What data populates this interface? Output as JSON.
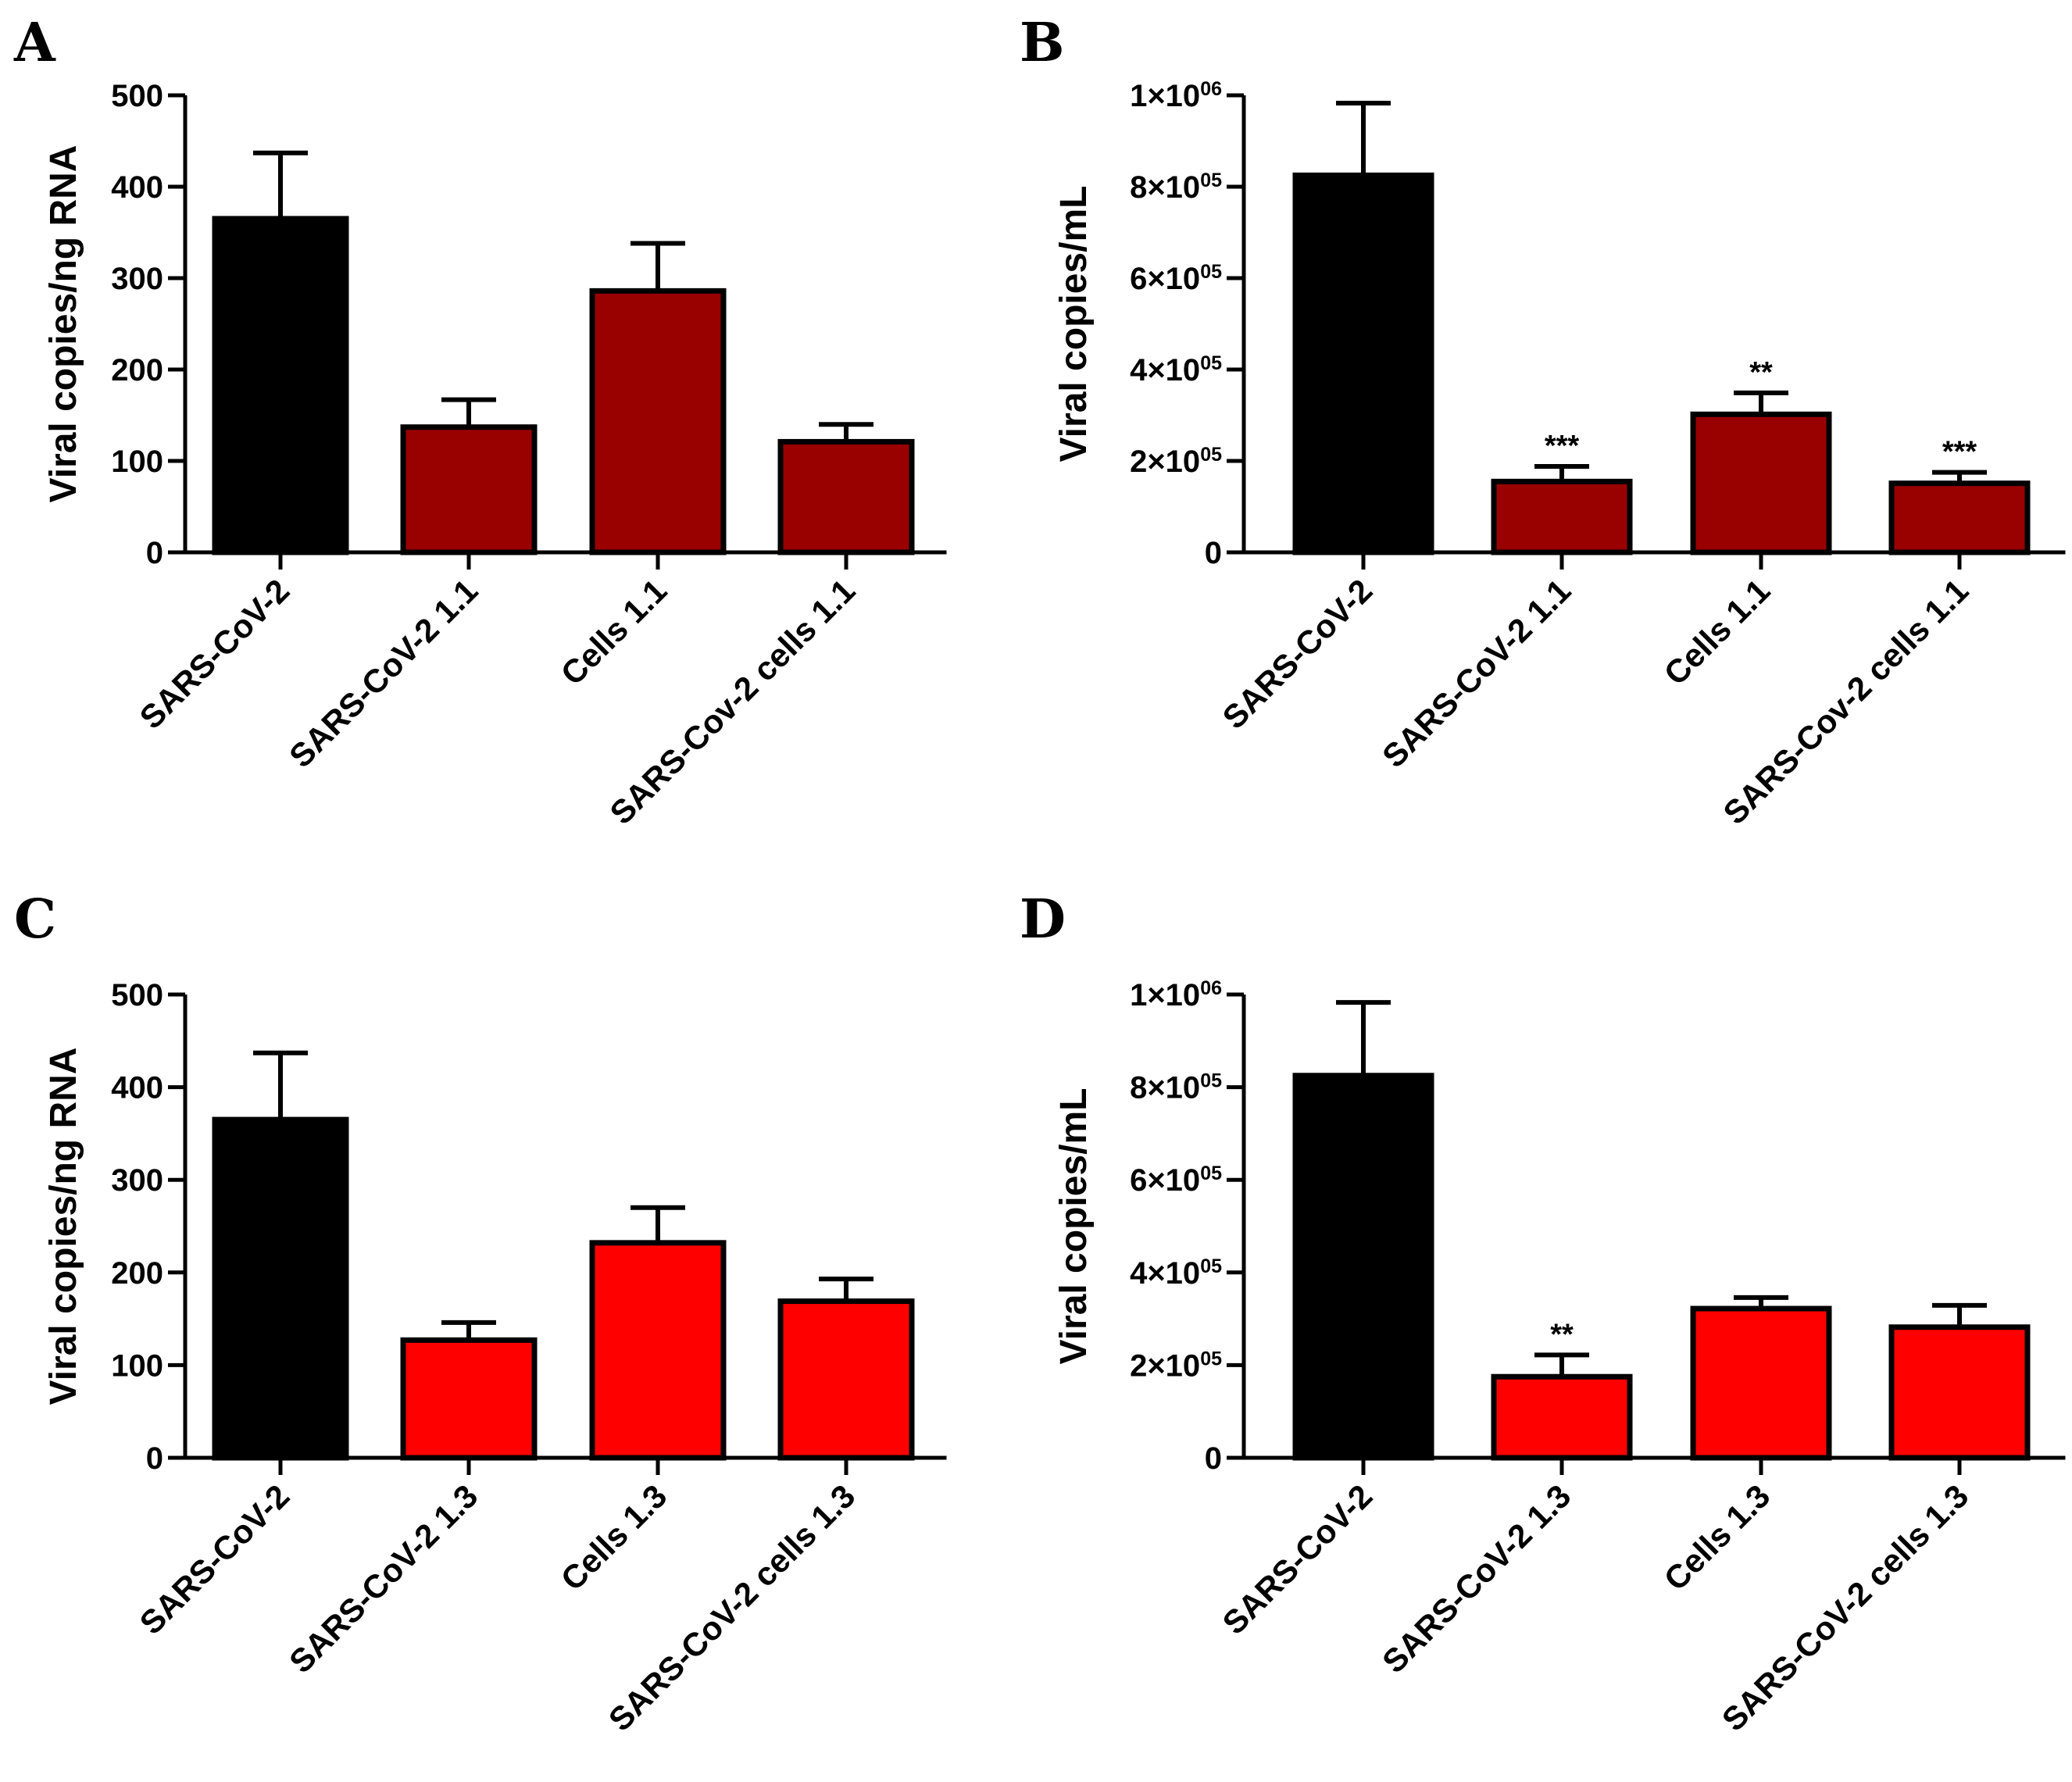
{
  "figure": {
    "colors": {
      "control": "#000000",
      "dark_red": "#990000",
      "red": "#ff0000"
    }
  },
  "chart_data": [
    {
      "panel": "A",
      "type": "bar",
      "ylabel": "Viral copies/ng RNA",
      "ylim": [
        0,
        500
      ],
      "yticks": [
        0,
        100,
        200,
        300,
        400,
        500
      ],
      "ytick_labels": [
        "0",
        "100",
        "200",
        "300",
        "400",
        "500"
      ],
      "categories": [
        "SARS-CoV-2",
        "SARS-CoV-2 1.1",
        "Cells 1.1",
        "SARS-Cov-2 cells 1.1"
      ],
      "values": [
        365,
        137,
        286,
        121
      ],
      "errors": [
        72,
        30,
        52,
        19
      ],
      "significance": [
        "",
        "",
        "",
        ""
      ],
      "bar_colors": [
        "#000000",
        "#990000",
        "#990000",
        "#990000"
      ]
    },
    {
      "panel": "B",
      "type": "bar",
      "ylabel": "Viral copies/mL",
      "ylim": [
        0,
        1000000
      ],
      "yticks": [
        0,
        200000,
        400000,
        600000,
        800000,
        1000000
      ],
      "ytick_labels": [
        {
          "base": "0",
          "sup": ""
        },
        {
          "base": "2×10",
          "sup": "05"
        },
        {
          "base": "4×10",
          "sup": "05"
        },
        {
          "base": "6×10",
          "sup": "05"
        },
        {
          "base": "8×10",
          "sup": "05"
        },
        {
          "base": "1×10",
          "sup": "06"
        }
      ],
      "categories": [
        "SARS-CoV-2",
        "SARS-CoV-2 1.1",
        "Cells 1.1",
        "SARS-Cov-2 cells 1.1"
      ],
      "values": [
        825000,
        155000,
        302000,
        151000
      ],
      "errors": [
        158000,
        33000,
        47000,
        24000
      ],
      "significance": [
        "",
        "***",
        "**",
        "***"
      ],
      "bar_colors": [
        "#000000",
        "#990000",
        "#990000",
        "#990000"
      ]
    },
    {
      "panel": "C",
      "type": "bar",
      "ylabel": "Viral copies/ng RNA",
      "ylim": [
        0,
        500
      ],
      "yticks": [
        0,
        100,
        200,
        300,
        400,
        500
      ],
      "ytick_labels": [
        "0",
        "100",
        "200",
        "300",
        "400",
        "500"
      ],
      "categories": [
        "SARS-CoV-2",
        "SARS-CoV-2 1.3",
        "Cells 1.3",
        "SARS-CoV-2 cells 1.3"
      ],
      "values": [
        365,
        127,
        232,
        169
      ],
      "errors": [
        72,
        19,
        38,
        24
      ],
      "significance": [
        "",
        "",
        "",
        ""
      ],
      "bar_colors": [
        "#000000",
        "#ff0000",
        "#ff0000",
        "#ff0000"
      ]
    },
    {
      "panel": "D",
      "type": "bar",
      "ylabel": "Viral copies/mL",
      "ylim": [
        0,
        1000000
      ],
      "yticks": [
        0,
        200000,
        400000,
        600000,
        800000,
        1000000
      ],
      "ytick_labels": [
        {
          "base": "0",
          "sup": ""
        },
        {
          "base": "2×10",
          "sup": "05"
        },
        {
          "base": "4×10",
          "sup": "05"
        },
        {
          "base": "6×10",
          "sup": "05"
        },
        {
          "base": "8×10",
          "sup": "05"
        },
        {
          "base": "1×10",
          "sup": "06"
        }
      ],
      "categories": [
        "SARS-CoV-2",
        "SARS-CoV-2 1.3",
        "Cells 1.3",
        "SARS-CoV-2 cells 1.3"
      ],
      "values": [
        825000,
        175000,
        322000,
        282000
      ],
      "errors": [
        158000,
        47000,
        24000,
        47000
      ],
      "significance": [
        "",
        "**",
        "",
        ""
      ],
      "bar_colors": [
        "#000000",
        "#ff0000",
        "#ff0000",
        "#ff0000"
      ]
    }
  ]
}
